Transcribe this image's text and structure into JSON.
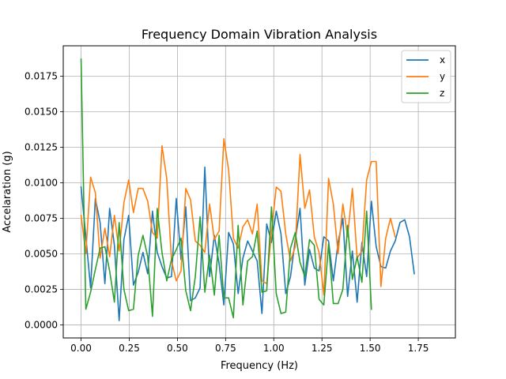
{
  "chart_data": {
    "type": "line",
    "title": "Frequency Domain Vibration Analysis",
    "xlabel": "Frequency (Hz)",
    "ylabel": "Accelaration (g)",
    "xlim": [
      -0.0925,
      1.9425
    ],
    "ylim": [
      -0.00092,
      0.01964
    ],
    "xticks": [
      0.0,
      0.25,
      0.5,
      0.75,
      1.0,
      1.25,
      1.5,
      1.75
    ],
    "xtick_labels": [
      "0.00",
      "0.25",
      "0.50",
      "0.75",
      "1.00",
      "1.25",
      "1.50",
      "1.75"
    ],
    "yticks": [
      0.0,
      0.0025,
      0.005,
      0.0075,
      0.01,
      0.0125,
      0.015,
      0.0175
    ],
    "ytick_labels": [
      "0.0000",
      "0.0025",
      "0.0050",
      "0.0075",
      "0.0100",
      "0.0125",
      "0.0150",
      "0.0175"
    ],
    "grid": true,
    "legend_position": "top-right",
    "x_start": 0.0,
    "x_step": 0.0247,
    "series": [
      {
        "name": "x",
        "color": "#1f77b4",
        "values": [
          0.0097,
          0.0062,
          0.0026,
          0.0089,
          0.0072,
          0.0029,
          0.0082,
          0.0056,
          0.0003,
          0.006,
          0.0077,
          0.0028,
          0.0037,
          0.0051,
          0.0036,
          0.008,
          0.0051,
          0.0041,
          0.0033,
          0.0034,
          0.0089,
          0.0046,
          0.0083,
          0.0017,
          0.0019,
          0.0026,
          0.0111,
          0.0034,
          0.0063,
          0.0043,
          0.0014,
          0.0065,
          0.0057,
          0.0022,
          0.0047,
          0.0059,
          0.0052,
          0.0045,
          0.0008,
          0.0071,
          0.0058,
          0.008,
          0.0064,
          0.0022,
          0.0034,
          0.006,
          0.0082,
          0.0028,
          0.0053,
          0.004,
          0.0038,
          0.0062,
          0.0059,
          0.0031,
          0.0058,
          0.0075,
          0.002,
          0.0052,
          0.0016,
          0.0058,
          0.0034,
          0.0087,
          0.0055,
          0.0041,
          0.004,
          0.0052,
          0.0059,
          0.0072,
          0.0074,
          0.0062,
          0.0036
        ]
      },
      {
        "name": "y",
        "color": "#ff7f0e",
        "values": [
          0.0077,
          0.005,
          0.0104,
          0.0093,
          0.0047,
          0.0068,
          0.0048,
          0.0077,
          0.0052,
          0.0086,
          0.0102,
          0.0079,
          0.0096,
          0.0096,
          0.0087,
          0.0065,
          0.0061,
          0.0126,
          0.0103,
          0.0045,
          0.0031,
          0.0038,
          0.0096,
          0.0088,
          0.0059,
          0.0056,
          0.0051,
          0.0085,
          0.006,
          0.0066,
          0.0131,
          0.0109,
          0.0061,
          0.0054,
          0.0069,
          0.0074,
          0.0064,
          0.0085,
          0.0031,
          0.0029,
          0.0065,
          0.0097,
          0.0094,
          0.0064,
          0.0045,
          0.0055,
          0.012,
          0.0082,
          0.0095,
          0.0062,
          0.0051,
          0.0021,
          0.0103,
          0.0085,
          0.005,
          0.0085,
          0.0062,
          0.0096,
          0.0047,
          0.0052,
          0.0102,
          0.0115,
          0.0115,
          0.0027,
          0.0061,
          0.0075,
          0.0062
        ]
      },
      {
        "name": "z",
        "color": "#2ca02c",
        "values": [
          0.0187,
          0.0011,
          0.0023,
          0.0039,
          0.0054,
          0.0055,
          0.0038,
          0.0016,
          0.0072,
          0.0025,
          0.001,
          0.0011,
          0.0049,
          0.0063,
          0.0048,
          0.0006,
          0.0082,
          0.0051,
          0.0031,
          0.0046,
          0.0053,
          0.0061,
          0.0024,
          0.001,
          0.0034,
          0.0076,
          0.0023,
          0.0049,
          0.0021,
          0.0063,
          0.0019,
          0.0019,
          0.0005,
          0.007,
          0.0014,
          0.0045,
          0.0048,
          0.0066,
          0.0023,
          0.0024,
          0.0083,
          0.0022,
          0.0008,
          0.0009,
          0.0054,
          0.0065,
          0.0044,
          0.0034,
          0.006,
          0.0056,
          0.0018,
          0.0014,
          0.0057,
          0.0015,
          0.0015,
          0.0025,
          0.007,
          0.0032,
          0.0048,
          0.003,
          0.008,
          0.0011
        ]
      }
    ]
  }
}
